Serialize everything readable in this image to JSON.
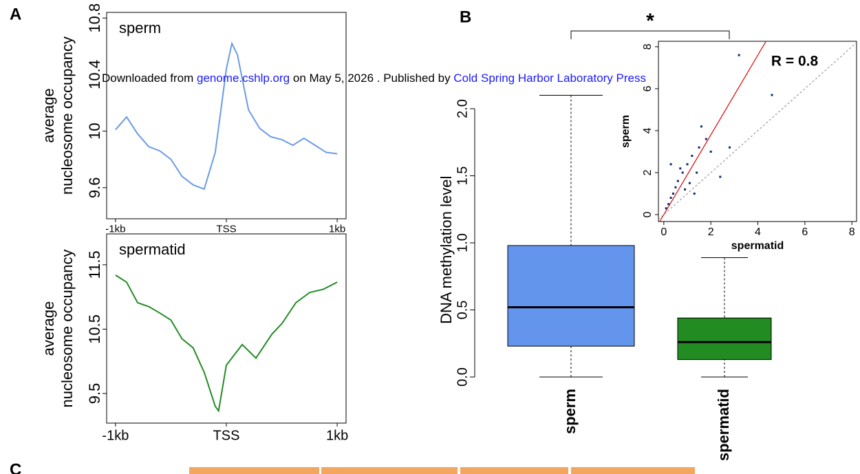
{
  "panel_labels": [
    "A",
    "B",
    "C"
  ],
  "watermark": {
    "prefix": "Downloaded from",
    "site": "genome.cshlp.org",
    "middle": "on May 5, 2026 . Published by",
    "publisher": "Cold Spring Harbor Laboratory Press"
  },
  "chart_data": [
    {
      "type": "line",
      "ylabel_lines": [
        "average",
        "nucleosome occupancy"
      ],
      "x": [
        -1000,
        -900,
        -800,
        -700,
        -600,
        -500,
        -400,
        -300,
        -200,
        -100,
        0,
        50,
        100,
        200,
        300,
        400,
        500,
        600,
        700,
        800,
        900,
        1000
      ],
      "series": [
        {
          "name": "sperm",
          "color": "#6a9be6",
          "values": [
            10.01,
            10.1,
            9.98,
            9.89,
            9.86,
            9.8,
            9.68,
            9.62,
            9.59,
            9.85,
            10.44,
            10.62,
            10.54,
            10.15,
            10.02,
            9.96,
            9.94,
            9.9,
            9.95,
            9.9,
            9.85,
            9.84
          ]
        }
      ],
      "xlim": [
        -1080,
        1080
      ],
      "xticks": [
        {
          "value": -1000,
          "label": "-1kb"
        },
        {
          "value": 0,
          "label": "TSS"
        },
        {
          "value": 1000,
          "label": "1kb"
        }
      ],
      "ylim": [
        9.38,
        10.84
      ],
      "yticks": [
        {
          "value": 9.6,
          "label": "9.6"
        },
        10,
        {
          "value": 10.4,
          "label": "10.4"
        },
        {
          "value": 10.8,
          "label": "10.8"
        }
      ]
    },
    {
      "type": "line",
      "ylabel_lines": [
        "average",
        "nucleosome occupancy"
      ],
      "x": [
        -1000,
        -900,
        -800,
        -700,
        -600,
        -500,
        -400,
        -300,
        -200,
        -100,
        -70,
        0,
        143,
        267,
        410,
        503,
        627,
        752,
        876,
        1000
      ],
      "series": [
        {
          "name": "spermatid",
          "color": "#228b22",
          "values": [
            11.34,
            11.23,
            10.91,
            10.85,
            10.75,
            10.64,
            10.35,
            10.21,
            9.83,
            9.3,
            9.23,
            9.94,
            10.26,
            10.05,
            10.42,
            10.59,
            10.91,
            11.07,
            11.12,
            11.23
          ]
        }
      ],
      "xlim": [
        -1080,
        1080
      ],
      "xticks": [
        {
          "value": -1000,
          "label": "-1kb"
        },
        {
          "value": 0,
          "label": "TSS"
        },
        {
          "value": 1000,
          "label": "1kb"
        }
      ],
      "ylim": [
        9.04,
        11.98
      ],
      "yticks": [
        {
          "value": 9.5,
          "label": "9.5"
        },
        {
          "value": 10.5,
          "label": "10.5"
        },
        {
          "value": 11.5,
          "label": "11.5"
        }
      ]
    },
    {
      "type": "box",
      "ylabel": "DNA methylation level",
      "categories": [
        "sperm",
        "spermatid"
      ],
      "colors": [
        "#6495ed",
        "#228b22"
      ],
      "boxes": [
        {
          "low": 0,
          "q1": 0.23,
          "median": 0.52,
          "q3": 0.98,
          "high": 2.1
        },
        {
          "low": 0,
          "q1": 0.13,
          "median": 0.26,
          "q3": 0.44,
          "high": 0.89
        }
      ],
      "significance": "*",
      "ylim": [
        -0.05,
        2.15
      ],
      "yticks": [
        {
          "value": 0,
          "label": "0.0"
        },
        0.5,
        {
          "value": 1,
          "label": "1.0"
        },
        1.5,
        {
          "value": 2,
          "label": "2.0"
        }
      ]
    },
    {
      "type": "scatter",
      "xlabel": "spermatid",
      "ylabel": "sperm",
      "annotation": "R = 0.8",
      "color": "#0b2a6e",
      "x": [
        0.1,
        0.2,
        0.3,
        0.4,
        0.5,
        0.6,
        0.8,
        1.0,
        1.2,
        1.5,
        1.8,
        0.9,
        1.1,
        1.4,
        2.0,
        2.4,
        3.2,
        4.6,
        0.7,
        1.6,
        1.3,
        0.3,
        2.8
      ],
      "y": [
        0.3,
        0.5,
        0.8,
        1.0,
        1.3,
        1.6,
        2.0,
        2.4,
        2.8,
        3.2,
        3.6,
        1.2,
        1.5,
        2.0,
        3.0,
        1.8,
        7.6,
        5.7,
        2.2,
        4.2,
        1.0,
        2.4,
        3.2
      ],
      "fit_line": {
        "slope": 1.9,
        "intercept": 0,
        "color": "#e00000"
      },
      "reference_line": {
        "slope": 1,
        "intercept": 0,
        "color": "#999999"
      },
      "xlim": [
        -0.23,
        8.2
      ],
      "xticks": [
        0,
        2,
        4,
        6,
        8
      ],
      "ylim": [
        -0.33,
        8.26
      ],
      "yticks": [
        0,
        2,
        4,
        6,
        8
      ]
    }
  ]
}
